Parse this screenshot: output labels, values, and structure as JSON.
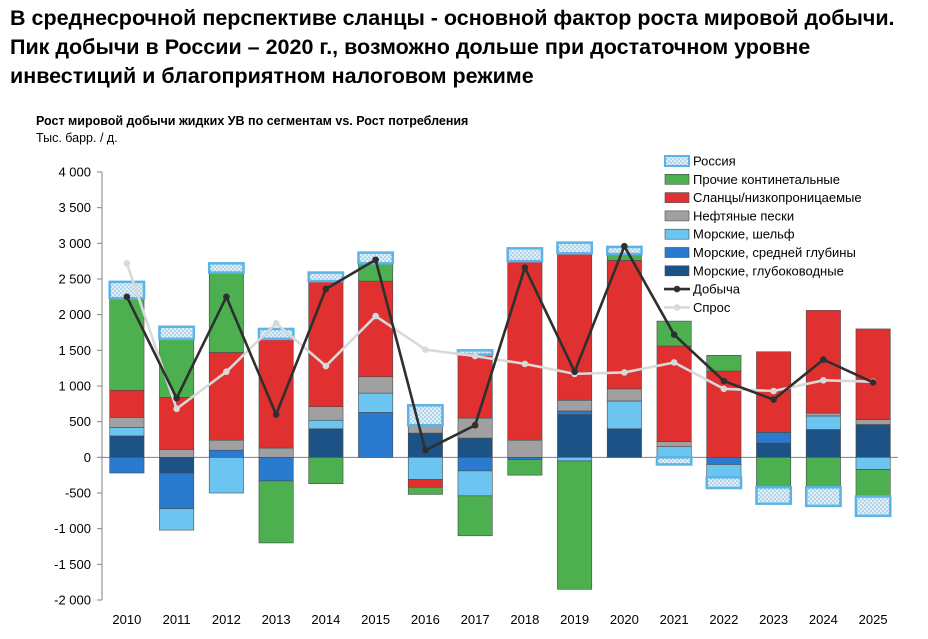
{
  "headline": "В среднесрочной перспективе сланцы - основной фактор роста мировой добычи. Пик добычи в России – 2020 г., возможно дольше при достаточном уровне инвестиций и благоприятном налоговом режиме",
  "colors": {
    "russia_border": "#5ab4e5",
    "russia_fill": "#d9ecf7",
    "other_onshore": "#4caf50",
    "shale": "#e03030",
    "oil_sands": "#a0a0a0",
    "offshore_shelf": "#6cc5f0",
    "offshore_mid": "#2a7bd0",
    "offshore_deep": "#1c5285",
    "production_line": "#2f2f2f",
    "demand_line": "#d9d9d9",
    "axis": "#808080"
  },
  "chart_data": {
    "type": "bar",
    "stacked": true,
    "title": "Рост мировой добычи жидких УВ по сегментам vs. Рост потребления",
    "ylabel": "Тыс. барр. / д.",
    "ylim": [
      -2000,
      4000
    ],
    "ytick_labels": [
      "4 000",
      "3 500",
      "3 000",
      "2 500",
      "2 000",
      "1 500",
      "1 000",
      "500",
      "0",
      "-500",
      "-1 000",
      "-1 500",
      "-2 000"
    ],
    "legend_position": "top-right",
    "categories": [
      "2010",
      "2011",
      "2012",
      "2013",
      "2014",
      "2015",
      "2016",
      "2017",
      "2018",
      "2019",
      "2020",
      "2021",
      "2022",
      "2023",
      "2024",
      "2025"
    ],
    "series": [
      {
        "name": "Морские, глубоководные",
        "key": "offshore_deep",
        "values": [
          300,
          -220,
          0,
          0,
          400,
          0,
          340,
          270,
          0,
          600,
          400,
          0,
          0,
          200,
          390,
          460
        ]
      },
      {
        "name": "Морские, средней глубины",
        "key": "offshore_mid",
        "values": [
          -220,
          -500,
          100,
          -330,
          0,
          630,
          0,
          -190,
          -30,
          50,
          0,
          0,
          -100,
          150,
          0,
          0
        ]
      },
      {
        "name": "Морские, шельф",
        "key": "offshore_shelf",
        "values": [
          120,
          -300,
          -500,
          0,
          120,
          270,
          -310,
          -350,
          0,
          -50,
          390,
          150,
          -180,
          0,
          190,
          -170
        ]
      },
      {
        "name": "Нефтяные пески",
        "key": "oil_sands",
        "values": [
          140,
          110,
          140,
          130,
          190,
          230,
          110,
          280,
          240,
          150,
          170,
          70,
          0,
          0,
          40,
          70
        ]
      },
      {
        "name": "Сланцы/низкопроницаемые",
        "key": "shale",
        "values": [
          380,
          730,
          1230,
          1530,
          1760,
          1340,
          -110,
          890,
          2510,
          2060,
          1800,
          1340,
          1210,
          1130,
          1440,
          1270
        ]
      },
      {
        "name": "Прочие континетальные",
        "key": "other_onshore",
        "values": [
          1290,
          820,
          1120,
          -870,
          -370,
          250,
          -100,
          -560,
          -220,
          -1800,
          90,
          350,
          220,
          -420,
          -420,
          -380
        ]
      },
      {
        "name": "Россия",
        "key": "russia",
        "values": [
          230,
          170,
          130,
          140,
          120,
          150,
          280,
          60,
          180,
          150,
          100,
          -100,
          -150,
          -230,
          -260,
          -270
        ]
      }
    ],
    "lines": [
      {
        "name": "Добыча",
        "key": "production_line",
        "values": [
          2250,
          830,
          2250,
          600,
          2360,
          2770,
          100,
          450,
          2660,
          1200,
          2960,
          1720,
          1070,
          810,
          1370,
          1050
        ]
      },
      {
        "name": "Спрос",
        "key": "demand_line",
        "values": [
          2720,
          680,
          1200,
          1880,
          1280,
          1980,
          1510,
          1420,
          1310,
          1170,
          1190,
          1330,
          960,
          930,
          1080,
          1060
        ]
      }
    ]
  }
}
